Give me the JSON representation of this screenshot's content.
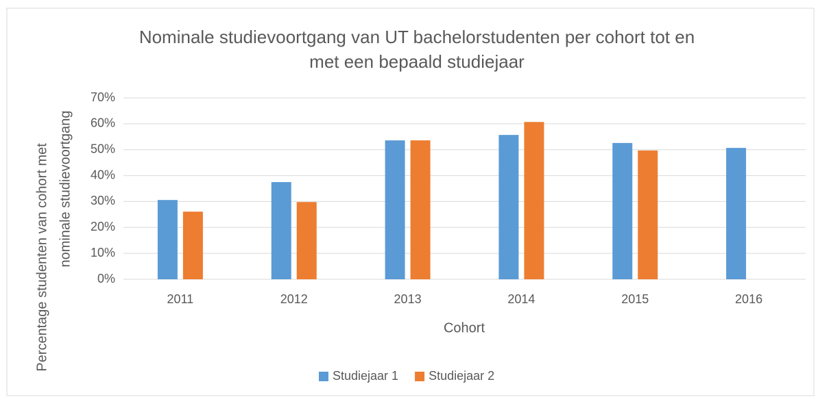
{
  "chart_data": {
    "type": "bar",
    "title": [
      "Nominale studievoortgang van UT bachelorstudenten per cohort tot en",
      "met een bepaald studiejaar"
    ],
    "x_label": "Cohort",
    "y_label": [
      "Percentage studenten van cohort met",
      "nominale studievoortgang"
    ],
    "categories": [
      "2011",
      "2012",
      "2013",
      "2014",
      "2015",
      "2016"
    ],
    "series": [
      {
        "name": "Studiejaar 1",
        "color": "#5b9bd5",
        "values": [
          30.6,
          37.5,
          53.6,
          55.7,
          52.6,
          50.7
        ]
      },
      {
        "name": "Studiejaar 2",
        "color": "#ed7d31",
        "values": [
          26.1,
          29.8,
          53.6,
          60.7,
          49.7,
          null
        ]
      }
    ],
    "ylim": [
      0,
      70
    ],
    "yticks": [
      {
        "value": 0,
        "label": "0%"
      },
      {
        "value": 10,
        "label": "10%"
      },
      {
        "value": 20,
        "label": "20%"
      },
      {
        "value": 30,
        "label": "30%"
      },
      {
        "value": 40,
        "label": "40%"
      },
      {
        "value": 50,
        "label": "50%"
      },
      {
        "value": 60,
        "label": "60%"
      },
      {
        "value": 70,
        "label": "70%"
      }
    ],
    "grid": true,
    "legend": "bottom"
  }
}
